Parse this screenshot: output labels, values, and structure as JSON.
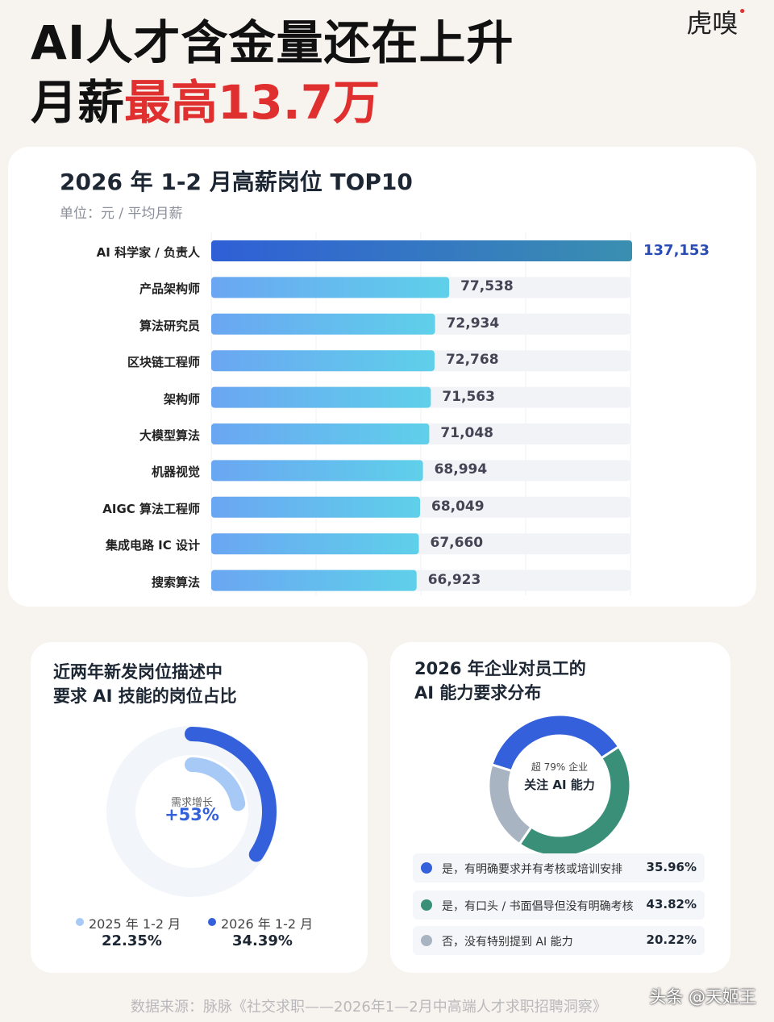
{
  "header": {
    "line1": "AI人才含金量还在上升",
    "line2_prefix": "月薪",
    "line2_highlight": "最高13.7万",
    "logo": "虎嗅"
  },
  "chart_data": [
    {
      "type": "bar",
      "orientation": "horizontal",
      "title": "2026 年 1-2 月高薪岗位 TOP10",
      "unit": "单位：元 / 平均月薪",
      "categories": [
        "AI 科学家 / 负责人",
        "产品架构师",
        "算法研究员",
        "区块链工程师",
        "架构师",
        "大模型算法",
        "机器视觉",
        "AIGC 算法工程师",
        "集成电路 IC 设计",
        "搜索算法"
      ],
      "values": [
        137153,
        77538,
        72934,
        72768,
        71563,
        71048,
        68994,
        68049,
        67660,
        66923
      ],
      "value_labels": [
        "137,153",
        "77,538",
        "72,934",
        "72,768",
        "71,563",
        "71,048",
        "68,994",
        "68,049",
        "67,660",
        "66,923"
      ],
      "xlim": [
        0,
        140000
      ],
      "colors": {
        "top": "#2f5fd6",
        "top_end": "#3a8fb0",
        "start": "#6aa6f2",
        "end": "#5fd0ea"
      }
    },
    {
      "type": "pie",
      "style": "concentric-rings",
      "title_line1": "近两年新发岗位描述中",
      "title_line2": "要求 AI 技能的岗位占比",
      "center_label": "需求增长",
      "center_value": "+53%",
      "series": [
        {
          "name": "2025 年 1-2 月",
          "value": 22.35,
          "display": "22.35%",
          "color": "#a7c9f5"
        },
        {
          "name": "2026 年 1-2 月",
          "value": 34.39,
          "display": "34.39%",
          "color": "#3461db"
        }
      ]
    },
    {
      "type": "pie",
      "style": "donut",
      "title_line1": "2026 年企业对员工的",
      "title_line2": "AI 能力要求分布",
      "center_small": "超 79% 企业",
      "center_big": "关注 AI 能力",
      "slices": [
        {
          "label": "是，有明确要求并有考核或培训安排",
          "value": 35.96,
          "display": "35.96%",
          "color": "#3461db"
        },
        {
          "label": "是，有口头 / 书面倡导但没有明确考核",
          "value": 43.82,
          "display": "43.82%",
          "color": "#3a8f78"
        },
        {
          "label": "否，没有特别提到 AI 能力",
          "value": 20.22,
          "display": "20.22%",
          "color": "#a9b4c2"
        }
      ]
    }
  ],
  "footer": {
    "source": "数据来源：脉脉《社交求职——2026年1—2月中高端人才求职招聘洞察》",
    "watermark": "头条 @天姬王"
  }
}
